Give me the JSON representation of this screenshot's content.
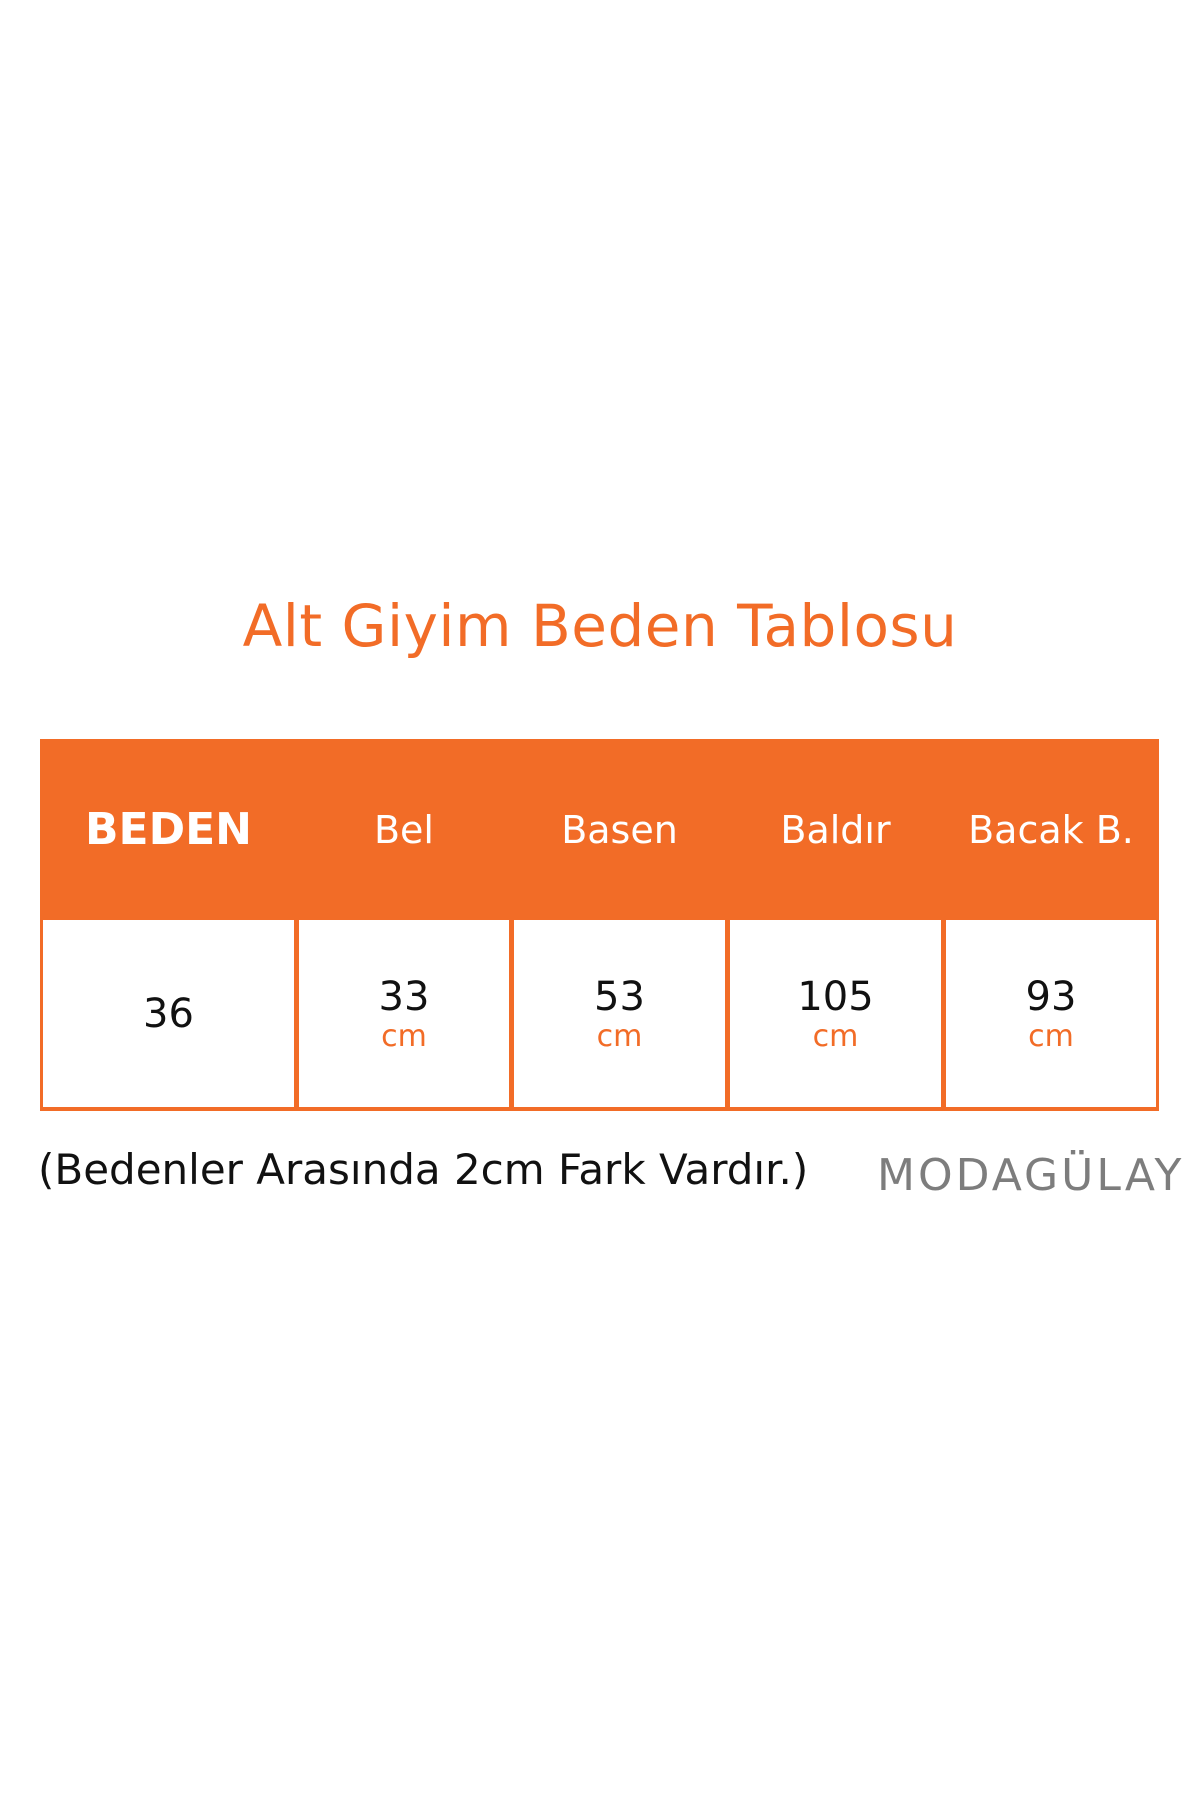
{
  "title": "Alt Giyim Beden Tablosu",
  "accent_color": "#f26c27",
  "table": {
    "headers": [
      "BEDEN",
      "Bel",
      "Basen",
      "Baldır",
      "Bacak B."
    ],
    "row": [
      {
        "value": "36",
        "unit": ""
      },
      {
        "value": "33",
        "unit": "cm"
      },
      {
        "value": "53",
        "unit": "cm"
      },
      {
        "value": "105",
        "unit": "cm"
      },
      {
        "value": "93",
        "unit": "cm"
      }
    ]
  },
  "note": "(Bedenler Arasında 2cm Fark Vardır.)",
  "logo": "MODAGÜLAY"
}
